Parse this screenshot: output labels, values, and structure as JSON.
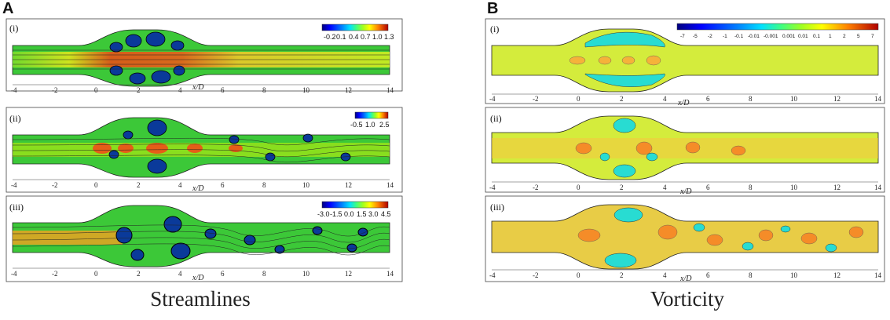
{
  "panels": {
    "a_letter": "A",
    "b_letter": "B"
  },
  "captions": {
    "left": "Streamlines",
    "right": "Vorticity"
  },
  "subplot_labels": [
    "(i)",
    "(ii)",
    "(iii)"
  ],
  "x_axis": {
    "label": "x/D",
    "ticks": [
      "-4",
      "-2",
      "0",
      "2",
      "4",
      "6",
      "8",
      "10",
      "12",
      "14"
    ]
  },
  "colorbars_A": [
    {
      "labels": [
        "-0.2",
        "0.1",
        "0.4",
        "0.7",
        "1.0",
        "1.3"
      ]
    },
    {
      "labels": [
        "-0.5",
        "1.0",
        "2.5"
      ]
    },
    {
      "labels": [
        "-3.0",
        "-1.5",
        "0.0",
        "1.5",
        "3.0",
        "4.5"
      ]
    }
  ],
  "colorbar_B": {
    "labels": [
      "-7",
      "-5",
      "-2",
      "-1",
      "-0.1",
      "-0.01",
      "-0.001",
      "0.001",
      "0.01",
      "0.1",
      "1",
      "2",
      "5",
      "7"
    ]
  },
  "colors": {
    "jet": [
      "#00007f",
      "#0000ff",
      "#0080ff",
      "#00e0ff",
      "#40ff80",
      "#a0ff20",
      "#ffff00",
      "#ff8000",
      "#ff2000",
      "#a00000"
    ],
    "flow_green": "#46c832",
    "flow_yellow": "#c8f00a",
    "vort_yellow": "#d4ec3c",
    "vort_orange": "#f5b23a",
    "vort_cyan": "#28dcd2"
  }
}
